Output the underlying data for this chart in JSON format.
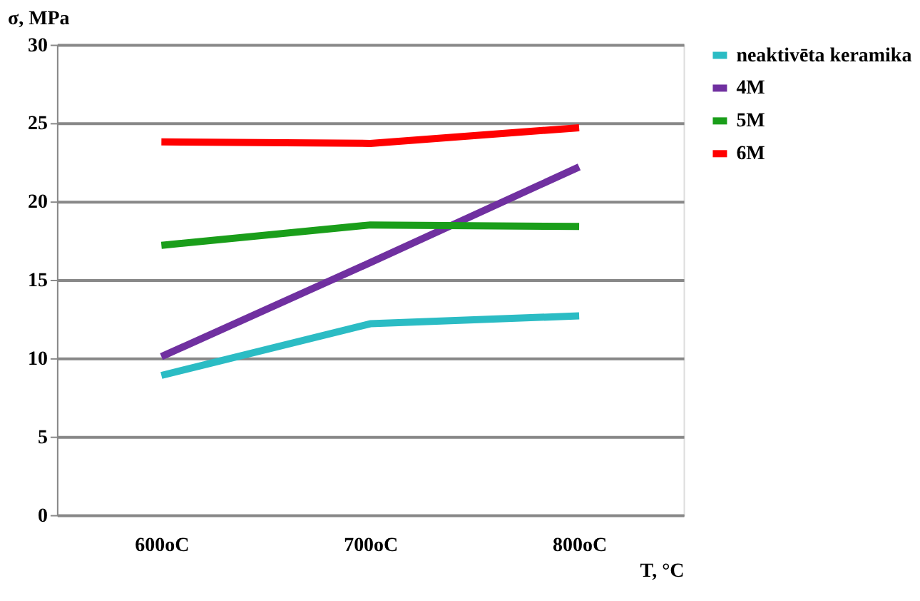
{
  "chart_data": {
    "type": "line",
    "xlabel": "T, °C",
    "ylabel": "σ, MPa",
    "categories": [
      "600oC",
      "700oC",
      "800oC"
    ],
    "series": [
      {
        "name": "neaktivēta keramika",
        "color": "#2bbcc4",
        "values": [
          8.9,
          12.2,
          12.7
        ]
      },
      {
        "name": "4M",
        "color": "#7030a0",
        "values": [
          10.1,
          16.1,
          22.2
        ]
      },
      {
        "name": "5M",
        "color": "#1a9e1a",
        "values": [
          17.2,
          18.5,
          18.4
        ]
      },
      {
        "name": "6M",
        "color": "#ff0000",
        "values": [
          23.8,
          23.7,
          24.7
        ]
      }
    ],
    "ylim": [
      0,
      30
    ],
    "yticks": [
      0,
      5,
      10,
      15,
      20,
      25,
      30
    ],
    "grid": "y",
    "legend": "right",
    "marker": "none",
    "line_style": "solid"
  }
}
